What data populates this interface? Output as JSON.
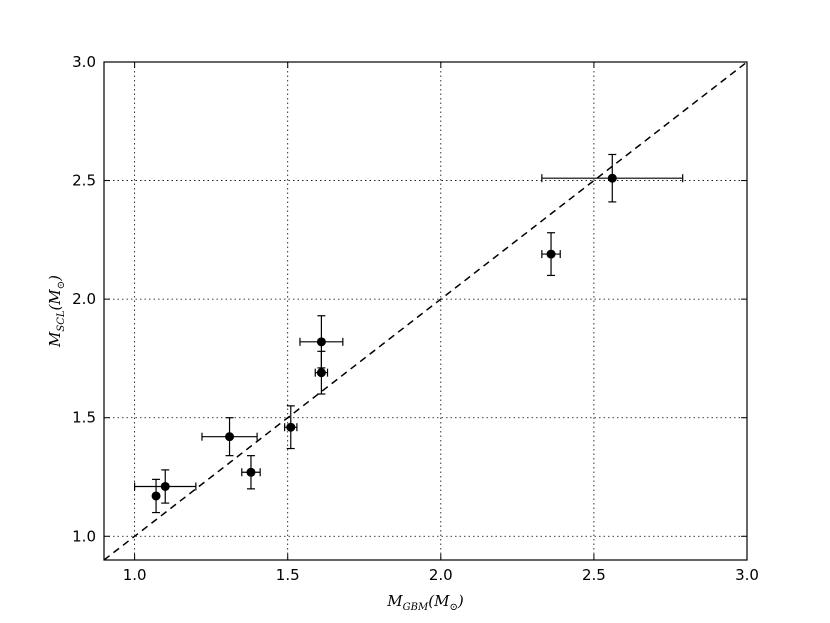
{
  "chart_data": {
    "type": "scatter",
    "title": "",
    "xlabel": "M_GBM(M_⊙)",
    "ylabel": "M_SCL(M_⊙)",
    "xlabel_parts": {
      "base": "M",
      "sub": "GBM",
      "paren_open": "(M",
      "paren_sub": "⊙",
      "paren_close": ")"
    },
    "ylabel_parts": {
      "base": "M",
      "sub": "SCL",
      "paren_open": "(M",
      "paren_sub": "⊙",
      "paren_close": ")"
    },
    "xlim": [
      0.9,
      3.0
    ],
    "ylim": [
      0.9,
      3.0
    ],
    "xticks": [
      1.0,
      1.5,
      2.0,
      2.5,
      3.0
    ],
    "yticks": [
      1.0,
      1.5,
      2.0,
      2.5,
      3.0
    ],
    "xtick_labels": [
      "1.0",
      "1.5",
      "2.0",
      "2.5",
      "3.0"
    ],
    "ytick_labels": [
      "1.0",
      "1.5",
      "2.0",
      "2.5",
      "3.0"
    ],
    "grid": true,
    "grid_style": "dotted",
    "reference_line": {
      "style": "dashed",
      "slope": 1,
      "intercept": 0
    },
    "points": [
      {
        "x": 1.07,
        "y": 1.17,
        "xerr": 0.0,
        "yerr": 0.07
      },
      {
        "x": 1.1,
        "y": 1.21,
        "xerr": 0.1,
        "yerr": 0.07
      },
      {
        "x": 1.31,
        "y": 1.42,
        "xerr": 0.09,
        "yerr": 0.08
      },
      {
        "x": 1.38,
        "y": 1.27,
        "xerr": 0.03,
        "yerr": 0.07
      },
      {
        "x": 1.51,
        "y": 1.46,
        "xerr": 0.02,
        "yerr": 0.09
      },
      {
        "x": 1.61,
        "y": 1.82,
        "xerr": 0.07,
        "yerr": 0.11
      },
      {
        "x": 1.61,
        "y": 1.69,
        "xerr": 0.02,
        "yerr": 0.09
      },
      {
        "x": 2.36,
        "y": 2.19,
        "xerr": 0.03,
        "yerr": 0.09
      },
      {
        "x": 2.56,
        "y": 2.51,
        "xerr": 0.23,
        "yerr": 0.1
      }
    ],
    "colors": {
      "points": "#000000",
      "grid": "#000000",
      "reference": "#000000"
    }
  }
}
